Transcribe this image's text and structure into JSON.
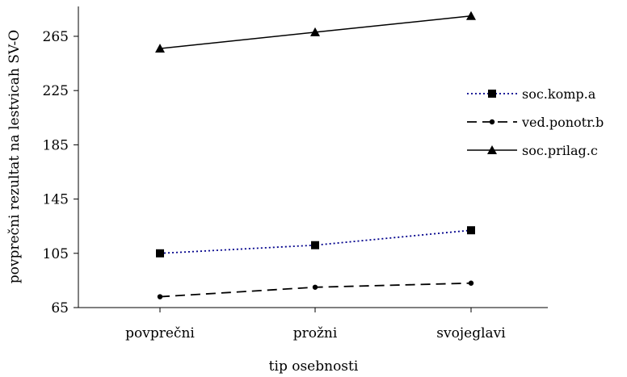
{
  "chart_data": {
    "type": "line",
    "title": "",
    "xlabel": "tip osebnosti",
    "ylabel": "povprečni rezultat na lestvicah SV-O",
    "categories": [
      "povprečni",
      "prožni",
      "svojeglavi"
    ],
    "y_ticks": [
      65,
      105,
      145,
      185,
      225,
      265
    ],
    "ylim": [
      65,
      287
    ],
    "grid": false,
    "legend_position": "right",
    "series": [
      {
        "name": "soc.komp.a",
        "values": [
          105,
          111,
          122
        ],
        "color": "#00008b",
        "line_style": "dotted",
        "marker": "square",
        "marker_color": "#000000"
      },
      {
        "name": "ved.ponotr.b",
        "values": [
          73,
          80,
          83
        ],
        "color": "#000000",
        "line_style": "dashed",
        "marker": "circle",
        "marker_color": "#000000"
      },
      {
        "name": "soc.prilag.c",
        "values": [
          256,
          268,
          280
        ],
        "color": "#000000",
        "line_style": "solid",
        "marker": "triangle",
        "marker_color": "#000000"
      }
    ]
  }
}
